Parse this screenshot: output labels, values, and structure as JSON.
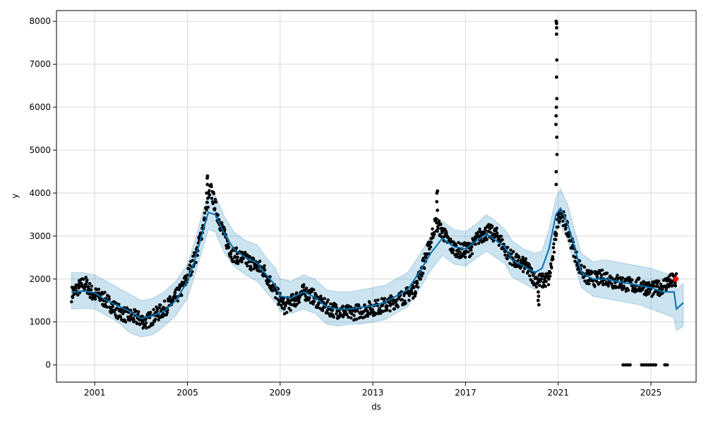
{
  "chart_data": {
    "type": "scatter",
    "title": "",
    "xlabel": "ds",
    "ylabel": "y",
    "xlim": [
      1999.35,
      2026.95
    ],
    "ylim": [
      -400,
      8250
    ],
    "grid": true,
    "x_ticks": [
      2001,
      2005,
      2009,
      2013,
      2017,
      2021,
      2025
    ],
    "x_tick_labels": [
      "2001",
      "2005",
      "2009",
      "2013",
      "2017",
      "2021",
      "2025"
    ],
    "y_ticks": [
      0,
      1000,
      2000,
      3000,
      4000,
      5000,
      6000,
      7000,
      8000
    ],
    "y_tick_labels": [
      "0",
      "1000",
      "2000",
      "3000",
      "4000",
      "5000",
      "6000",
      "7000",
      "8000"
    ],
    "colors": {
      "observed": "#000000",
      "forecast": "#0072B2",
      "interval": "#0072B2",
      "highlight": "#ff0000",
      "grid": "#d9d9d9"
    },
    "forecast": {
      "x": [
        2000.0,
        2000.5,
        2001.0,
        2001.5,
        2002.0,
        2002.5,
        2003.0,
        2003.5,
        2004.0,
        2004.5,
        2005.0,
        2005.3,
        2005.6,
        2005.9,
        2006.2,
        2006.6,
        2007.0,
        2007.5,
        2008.0,
        2008.4,
        2008.8,
        2009.0,
        2009.5,
        2010.0,
        2010.5,
        2011.0,
        2011.5,
        2012.0,
        2012.5,
        2013.0,
        2013.5,
        2014.0,
        2014.5,
        2015.0,
        2015.5,
        2016.0,
        2016.5,
        2017.0,
        2017.5,
        2017.9,
        2018.3,
        2018.7,
        2019.0,
        2019.5,
        2020.0,
        2020.3,
        2020.6,
        2020.9,
        2021.1,
        2021.4,
        2021.7,
        2022.0,
        2022.5,
        2023.0,
        2023.5,
        2024.0,
        2024.5,
        2025.0,
        2025.5,
        2026.0,
        2026.1,
        2026.4
      ],
      "yhat": [
        1700,
        1720,
        1680,
        1500,
        1380,
        1250,
        1080,
        1150,
        1250,
        1500,
        1950,
        2400,
        3000,
        3550,
        3500,
        3050,
        2700,
        2500,
        2380,
        2100,
        1850,
        1600,
        1560,
        1700,
        1580,
        1350,
        1300,
        1300,
        1340,
        1380,
        1450,
        1600,
        1750,
        2150,
        2600,
        2950,
        2750,
        2700,
        2900,
        3050,
        2900,
        2750,
        2450,
        2300,
        2150,
        2250,
        2700,
        3500,
        3650,
        3300,
        2750,
        2150,
        2000,
        2000,
        1950,
        1900,
        1850,
        1800,
        1700,
        1700,
        1300,
        1450
      ],
      "lower": [
        1300,
        1320,
        1300,
        1150,
        1000,
        750,
        650,
        700,
        900,
        1150,
        1550,
        2050,
        2600,
        3150,
        3100,
        2600,
        2300,
        2100,
        1950,
        1700,
        1450,
        1250,
        1200,
        1300,
        1200,
        950,
        900,
        950,
        950,
        1000,
        1050,
        1200,
        1350,
        1750,
        2200,
        2550,
        2350,
        2300,
        2500,
        2650,
        2500,
        2350,
        2050,
        1900,
        1750,
        1850,
        2300,
        3100,
        3250,
        2900,
        2350,
        1800,
        1600,
        1550,
        1500,
        1450,
        1400,
        1300,
        1200,
        1100,
        800,
        900
      ],
      "upper": [
        2150,
        2150,
        2100,
        1950,
        1800,
        1650,
        1500,
        1550,
        1700,
        1950,
        2350,
        2850,
        3450,
        4000,
        3950,
        3450,
        3100,
        2900,
        2800,
        2500,
        2250,
        2000,
        1950,
        2100,
        2000,
        1750,
        1700,
        1700,
        1750,
        1800,
        1850,
        2000,
        2150,
        2550,
        3000,
        3350,
        3150,
        3100,
        3300,
        3500,
        3350,
        3150,
        2900,
        2700,
        2600,
        2650,
        3150,
        3900,
        4100,
        3750,
        3150,
        2600,
        2400,
        2450,
        2400,
        2350,
        2300,
        2250,
        2150,
        2100,
        1750,
        1900
      ]
    },
    "observed_trend": {
      "x": [
        2000.0,
        2000.3,
        2000.6,
        2000.9,
        2001.2,
        2001.6,
        2002.0,
        2002.4,
        2002.8,
        2003.2,
        2003.6,
        2004.0,
        2004.4,
        2004.8,
        2005.1,
        2005.4,
        2005.7,
        2006.0,
        2006.3,
        2006.6,
        2006.9,
        2007.3,
        2007.7,
        2008.0,
        2008.3,
        2008.6,
        2008.9,
        2009.2,
        2009.6,
        2010.0,
        2010.4,
        2010.8,
        2011.2,
        2011.6,
        2012.0,
        2012.4,
        2012.8,
        2013.2,
        2013.6,
        2014.0,
        2014.4,
        2014.8,
        2015.1,
        2015.4,
        2015.7,
        2016.0,
        2016.4,
        2016.8,
        2017.2,
        2017.6,
        2018.0,
        2018.4,
        2018.8,
        2019.2,
        2019.6,
        2020.0,
        2020.3,
        2020.6,
        2020.8,
        2020.95,
        2021.1,
        2021.3,
        2021.6,
        2021.9,
        2022.2,
        2022.6,
        2023.0,
        2023.4,
        2023.8,
        2024.2,
        2024.6,
        2025.0,
        2025.4,
        2025.8,
        2026.1
      ],
      "y": [
        1650,
        1800,
        1900,
        1650,
        1600,
        1450,
        1250,
        1150,
        1100,
        1000,
        1150,
        1300,
        1500,
        1800,
        2200,
        2600,
        3300,
        4100,
        3500,
        3000,
        2600,
        2500,
        2400,
        2300,
        2200,
        1900,
        1600,
        1350,
        1500,
        1700,
        1600,
        1400,
        1300,
        1250,
        1200,
        1250,
        1300,
        1350,
        1400,
        1500,
        1600,
        1750,
        2200,
        2700,
        3300,
        3100,
        2750,
        2650,
        2700,
        3000,
        3100,
        3000,
        2600,
        2400,
        2300,
        2000,
        1950,
        2000,
        2600,
        3300,
        3600,
        3300,
        2800,
        2300,
        2050,
        2000,
        2050,
        1950,
        1900,
        1850,
        1850,
        1750,
        1800,
        1950,
        1950
      ],
      "jitter": 180
    },
    "observed_spikes": [
      {
        "x": 2020.92,
        "y": [
          4200,
          4500,
          4900,
          5300,
          5600,
          5800,
          6000,
          6200,
          6700,
          7100,
          7700,
          7850,
          7950,
          8000
        ]
      },
      {
        "x": 2015.78,
        "y": [
          3600,
          3800,
          4000,
          4050
        ]
      },
      {
        "x": 2005.85,
        "y": [
          4000,
          4200,
          4350,
          4400
        ]
      },
      {
        "x": 2020.15,
        "y": [
          1400,
          1500,
          1600,
          1700
        ]
      }
    ],
    "observed_zeros": {
      "x": [
        2023.8,
        2023.9,
        2024.0,
        2024.1,
        2024.6,
        2024.7,
        2024.8,
        2024.9,
        2025.0,
        2025.1,
        2025.2,
        2025.6,
        2025.7
      ],
      "y": 0
    },
    "highlight_points": {
      "x": [
        2026.05,
        2026.08,
        2026.1
      ],
      "y": [
        1980,
        2020,
        2000
      ]
    }
  }
}
